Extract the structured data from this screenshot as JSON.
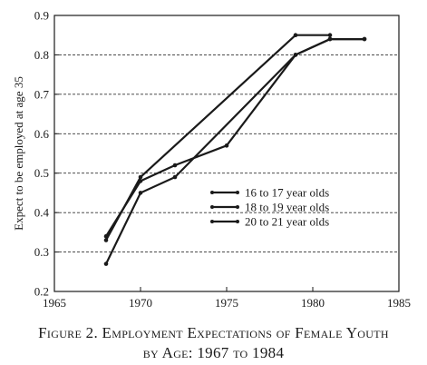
{
  "chart_data": {
    "type": "line",
    "title": "",
    "xlabel": "",
    "ylabel": "Expect to be employed at age 35",
    "xlim": [
      1965,
      1985
    ],
    "ylim": [
      0.2,
      0.9
    ],
    "x_ticks": [
      "1965",
      "1970",
      "1975",
      "1980",
      "1985"
    ],
    "y_ticks": [
      "0.2",
      "0.3",
      "0.4",
      "0.5",
      "0.6",
      "0.7",
      "0.8",
      "0.9"
    ],
    "gridlines": "horizontal dashed",
    "legend_position": "lower-right",
    "series": [
      {
        "name": "16 to 17 year olds",
        "points": [
          [
            1968,
            0.33
          ],
          [
            1970,
            0.49
          ],
          [
            1979,
            0.85
          ],
          [
            1981,
            0.85
          ]
        ]
      },
      {
        "name": "18 to 19 year olds",
        "points": [
          [
            1968,
            0.34
          ],
          [
            1970,
            0.48
          ],
          [
            1972,
            0.52
          ],
          [
            1975,
            0.57
          ],
          [
            1979,
            0.8
          ],
          [
            1981,
            0.84
          ],
          [
            1983,
            0.84
          ]
        ]
      },
      {
        "name": "20 to 21 year olds",
        "points": [
          [
            1968,
            0.27
          ],
          [
            1970,
            0.45
          ],
          [
            1972,
            0.49
          ],
          [
            1979,
            0.8
          ],
          [
            1981,
            0.84
          ],
          [
            1983,
            0.84
          ]
        ]
      }
    ]
  },
  "caption": {
    "line1": "Figure 2. Employment Expectations of Female Youth",
    "line2": "by Age: 1967 to 1984"
  }
}
